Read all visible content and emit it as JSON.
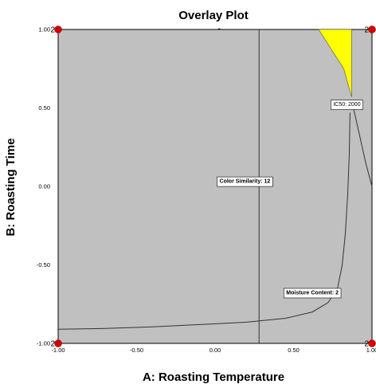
{
  "chart_data": {
    "type": "contour",
    "title": "Overlay Plot",
    "subtitle_mark": "-",
    "xlabel": "A: Roasting Temperature",
    "ylabel": "B: Roasting Time",
    "xlim": [
      -1.0,
      1.0
    ],
    "ylim": [
      -1.0,
      1.0
    ],
    "x_ticks": [
      {
        "value": -1.0,
        "label": "-1.00"
      },
      {
        "value": -0.5,
        "label": "-0.50"
      },
      {
        "value": 0.0,
        "label": "0.00"
      },
      {
        "value": 0.5,
        "label": "0.50"
      },
      {
        "value": 1.0,
        "label": "1.00"
      }
    ],
    "y_ticks": [
      {
        "value": -1.0,
        "label": "-1.00"
      },
      {
        "value": -0.5,
        "label": "-0.50"
      },
      {
        "value": 0.0,
        "label": "0.00"
      },
      {
        "value": 0.5,
        "label": "0.50"
      },
      {
        "value": 1.0,
        "label": "1.00"
      }
    ],
    "background_color": "#c0c0c0",
    "feasible_region_color": "#ffff00",
    "marker_color": "#d40000",
    "grid": false,
    "contours": [
      {
        "label": "Color Similarity: 12",
        "label_at": [
          0.19,
          0.03
        ],
        "points": [
          [
            0.28,
            1.0
          ],
          [
            0.28,
            0.5
          ],
          [
            0.28,
            0.0
          ],
          [
            0.28,
            -0.5
          ],
          [
            0.28,
            -1.0
          ]
        ]
      },
      {
        "label": "Moisture Content: 2",
        "label_at": [
          0.62,
          -0.68
        ],
        "points": [
          [
            -1.0,
            -0.91
          ],
          [
            -0.7,
            -0.905
          ],
          [
            -0.4,
            -0.895
          ],
          [
            -0.1,
            -0.88
          ],
          [
            0.2,
            -0.865
          ],
          [
            0.45,
            -0.84
          ],
          [
            0.62,
            -0.8
          ],
          [
            0.72,
            -0.74
          ],
          [
            0.78,
            -0.65
          ],
          [
            0.81,
            -0.5
          ],
          [
            0.83,
            -0.3
          ],
          [
            0.845,
            -0.05
          ],
          [
            0.855,
            0.2
          ],
          [
            0.86,
            0.47
          ]
        ]
      },
      {
        "label": "IC50: 2000",
        "label_at": [
          0.84,
          0.52
        ],
        "points": [
          [
            0.87,
            0.55
          ],
          [
            0.92,
            0.33
          ],
          [
            0.96,
            0.15
          ],
          [
            1.0,
            0.0
          ]
        ]
      }
    ],
    "feasible_region": [
      [
        0.66,
        1.0
      ],
      [
        0.87,
        1.0
      ],
      [
        0.87,
        0.57
      ],
      [
        0.82,
        0.75
      ]
    ],
    "design_points": [
      {
        "x": -1.0,
        "y": 1.0,
        "label": "2"
      },
      {
        "x": 1.0,
        "y": 1.0,
        "label": "2"
      },
      {
        "x": -1.0,
        "y": -1.0,
        "label": "2"
      },
      {
        "x": 1.0,
        "y": -1.0,
        "label": "2"
      }
    ]
  }
}
